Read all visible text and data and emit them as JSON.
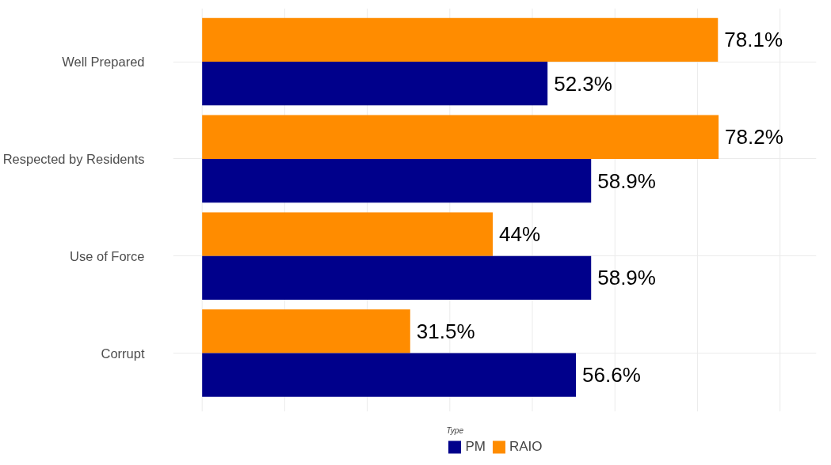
{
  "chart_data": {
    "type": "bar",
    "orientation": "horizontal",
    "categories": [
      "Well Prepared",
      "Respected by Residents",
      "Use of Force",
      "Corrupt"
    ],
    "series": [
      {
        "name": "RAIO",
        "color": "#ff8c00",
        "values": [
          78.1,
          78.2,
          44,
          31.5
        ],
        "value_labels": [
          "78.1%",
          "78.2%",
          "44%",
          "31.5%"
        ]
      },
      {
        "name": "PM",
        "color": "#00008b",
        "values": [
          52.3,
          58.9,
          58.9,
          56.6
        ],
        "value_labels": [
          "52.3%",
          "58.9%",
          "58.9%",
          "56.6%"
        ]
      }
    ],
    "legend_title": "Type",
    "legend": "bottom",
    "grid": true,
    "tick_labels": "y",
    "xlim": [
      -4.4,
      93
    ],
    "xticks": [
      {
        "value": 0,
        "label": null
      },
      {
        "value": 12.5,
        "label": null
      },
      {
        "value": 25,
        "label": null
      },
      {
        "value": 37.5,
        "label": null
      },
      {
        "value": 50,
        "label": null
      },
      {
        "value": 62.5,
        "label": null
      },
      {
        "value": 75,
        "label": null
      },
      {
        "value": 87.5,
        "label": null
      }
    ]
  }
}
